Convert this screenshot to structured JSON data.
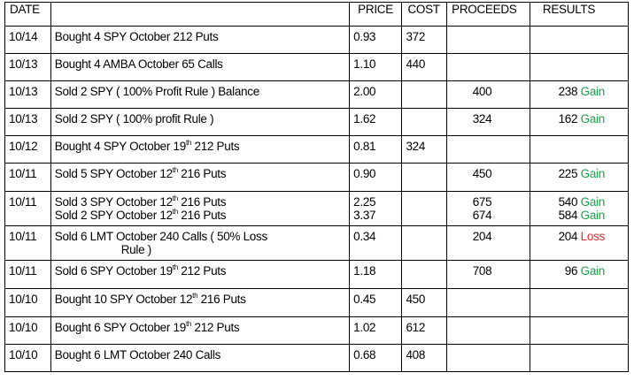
{
  "headers": {
    "date": "DATE",
    "description": "",
    "price": "PRICE",
    "cost": "COST",
    "proceeds": "PROCEEDS",
    "results": "RESULTS"
  },
  "colors": {
    "gain": "#1aa34a",
    "loss": "#e0262a"
  },
  "rows": [
    {
      "date": "10/14",
      "lines": [
        {
          "pre": "Bought 4 SPY October 212 Puts"
        }
      ],
      "price": [
        "0.93"
      ],
      "cost": "372",
      "proceeds": [],
      "results": []
    },
    {
      "date": "10/13",
      "lines": [
        {
          "pre": "Bought 4 AMBA October 65 Calls"
        }
      ],
      "price": [
        "1.10"
      ],
      "cost": "440",
      "proceeds": [],
      "results": []
    },
    {
      "date": "10/13",
      "lines": [
        {
          "pre": "Sold 2 SPY ( 100% Profit Rule ) Balance"
        }
      ],
      "price": [
        "2.00"
      ],
      "cost": "",
      "proceeds": [
        "400"
      ],
      "results": [
        {
          "amount": "238",
          "label": "Gain",
          "kind": "gain"
        }
      ]
    },
    {
      "date": "10/13",
      "lines": [
        {
          "pre": "Sold  2 SPY ( 100% profit Rule )"
        }
      ],
      "price": [
        "1.62"
      ],
      "cost": "",
      "proceeds": [
        "324"
      ],
      "results": [
        {
          "amount": "162",
          "label": "Gain",
          "kind": "gain"
        }
      ]
    },
    {
      "date": "10/12",
      "lines": [
        {
          "pre": "Bought 4 SPY October 19",
          "sup": "th",
          "post": " 212 Puts"
        }
      ],
      "price": [
        "0.81"
      ],
      "cost": "324",
      "proceeds": [],
      "results": []
    },
    {
      "date": "10/11",
      "lines": [
        {
          "pre": "Sold 5 SPY October 12",
          "sup": "th",
          "post": " 216 Puts"
        }
      ],
      "price": [
        "0.90"
      ],
      "cost": "",
      "proceeds": [
        "450"
      ],
      "results": [
        {
          "amount": "225",
          "label": "Gain",
          "kind": "gain"
        }
      ]
    },
    {
      "date": "10/11",
      "lines": [
        {
          "pre": "Sold 3 SPY October 12",
          "sup": "th",
          "post": " 216 Puts"
        },
        {
          "pre": "Sold 2 SPY October 12",
          "sup": "th",
          "post": " 216 Puts"
        }
      ],
      "price": [
        "2.25",
        "3.37"
      ],
      "cost": "",
      "proceeds": [
        "675",
        "674"
      ],
      "results": [
        {
          "amount": "540",
          "label": "Gain",
          "kind": "gain"
        },
        {
          "amount": "584",
          "label": "Gain",
          "kind": "gain"
        }
      ]
    },
    {
      "date": "10/11",
      "lines": [
        {
          "pre": "Sold 6 LMT October 240 Calls ( 50% Loss"
        },
        {
          "pre": "Rule )",
          "wrap": true
        }
      ],
      "price": [
        "0.34"
      ],
      "cost": "",
      "proceeds": [
        "204"
      ],
      "results": [
        {
          "amount": "204",
          "label": "Loss",
          "kind": "loss"
        }
      ]
    },
    {
      "date": "10/11",
      "lines": [
        {
          "pre": "Sold 6 SPY October 19",
          "sup": "th",
          "post": " 212 Puts"
        }
      ],
      "price": [
        "1.18"
      ],
      "cost": "",
      "proceeds": [
        "708"
      ],
      "results": [
        {
          "amount": "96",
          "label": "Gain",
          "kind": "gain"
        }
      ]
    },
    {
      "date": "10/10",
      "lines": [
        {
          "pre": "Bought 10 SPY October 12",
          "sup": "th",
          "post": " 216 Puts"
        }
      ],
      "price": [
        "0.45"
      ],
      "cost": "450",
      "proceeds": [],
      "results": []
    },
    {
      "date": "10/10",
      "lines": [
        {
          "pre": "Bought 6 SPY October 19",
          "sup": "th",
          "post": " 212 Puts"
        }
      ],
      "price": [
        "1.02"
      ],
      "cost": "612",
      "proceeds": [],
      "results": []
    },
    {
      "date": "10/10",
      "lines": [
        {
          "pre": "Bought 6 LMT October 240 Calls"
        }
      ],
      "price": [
        "0.68"
      ],
      "cost": "408",
      "proceeds": [],
      "results": []
    }
  ]
}
